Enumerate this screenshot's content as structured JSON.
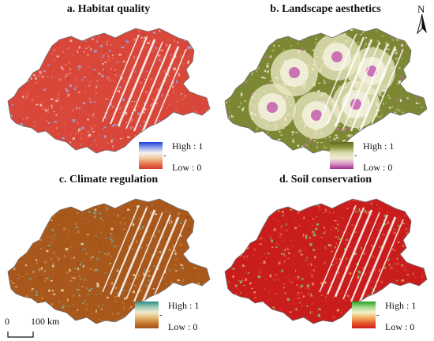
{
  "panels": [
    {
      "id": "a",
      "title": "a. Habitat quality",
      "legend_high": "High : 1",
      "legend_low": "Low : 0",
      "ramp": [
        "#1f3fd6",
        "#8fa2ef",
        "#f5f2f0",
        "#f2c9a0",
        "#e8794e",
        "#d53a2b"
      ],
      "fill": [
        "#d8473a",
        "#e4604e",
        "#cf3b30",
        "#ea7a68",
        "#9aa7e6",
        "#f0c6b8"
      ]
    },
    {
      "id": "b",
      "title": "b. Landscape aesthetics",
      "legend_high": "High : 1",
      "legend_low": "Low : 0",
      "ramp": [
        "#5e6a1f",
        "#8f9a43",
        "#d9dcae",
        "#f2ecd4",
        "#d99ac8",
        "#a32f8f"
      ],
      "fill": [
        "#7c8734",
        "#a3ab5c",
        "#c9cc92",
        "#e9e8c4",
        "#f4efd9",
        "#c764b0"
      ]
    },
    {
      "id": "c",
      "title": "c. Climate regulation",
      "legend_high": "High : 1",
      "legend_low": "Low : 0",
      "ramp": [
        "#2c8a87",
        "#9ccbb4",
        "#f2ead0",
        "#e4b873",
        "#c77a2e",
        "#a5531a"
      ],
      "fill": [
        "#a9581c",
        "#b9672a",
        "#9a4d16",
        "#c68546",
        "#6fa79b",
        "#e7d3a9"
      ]
    },
    {
      "id": "d",
      "title": "d. Soil conservation",
      "legend_high": "High : 1",
      "legend_low": "Low : 0",
      "ramp": [
        "#1ea31e",
        "#9fd68a",
        "#f4f2c8",
        "#f2b066",
        "#e55a2a",
        "#cc1f1f"
      ],
      "fill": [
        "#c91d1d",
        "#d8302a",
        "#e04a35",
        "#cf2424",
        "#f0a060",
        "#7cc46a"
      ]
    }
  ],
  "north": {
    "label": "N"
  },
  "scale": {
    "zero": "0",
    "distance": "100 km"
  },
  "colors": {
    "outline": "#6e6e6e",
    "rift": "#ffffff"
  }
}
